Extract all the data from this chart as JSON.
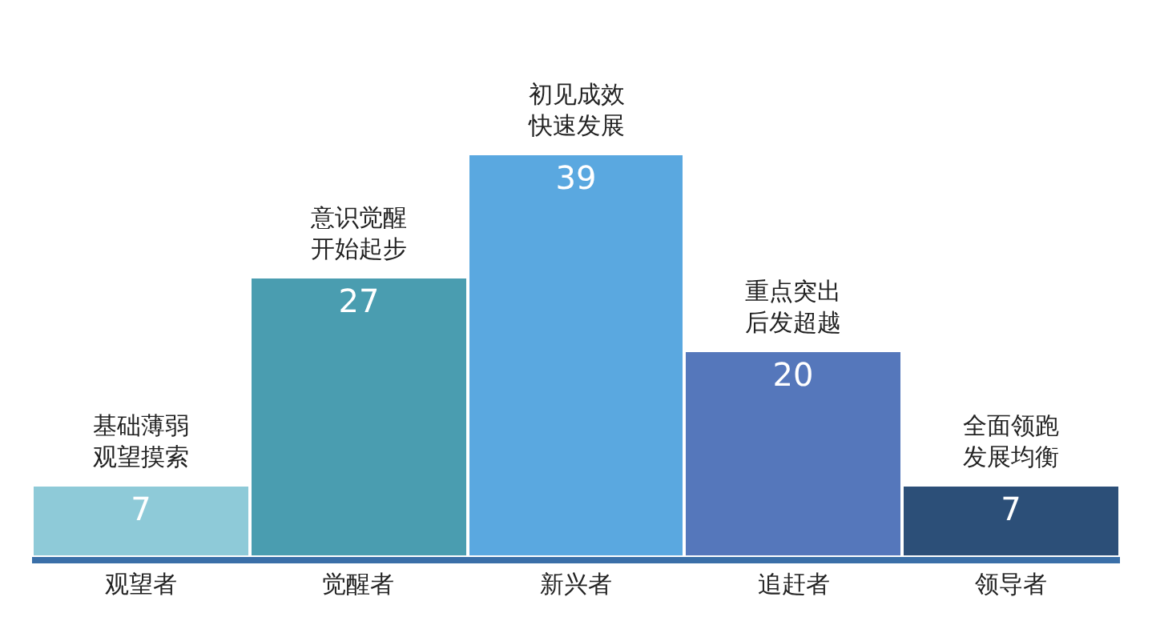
{
  "chart_data": {
    "type": "bar",
    "categories": [
      "观望者",
      "觉醒者",
      "新兴者",
      "追赶者",
      "领导者"
    ],
    "values": [
      7,
      27,
      39,
      20,
      7
    ],
    "colors": [
      "#8ecad8",
      "#4a9db0",
      "#5aa8e0",
      "#5577bb",
      "#2c4f78"
    ],
    "data_labels": true,
    "tick_labels": "x",
    "legend": false,
    "annotations": [
      "基础薄弱观望摸索",
      "意识觉醒开始起步",
      "初见成效快速发展",
      "重点突出后发超越",
      "全面领跑发展均衡"
    ]
  }
}
